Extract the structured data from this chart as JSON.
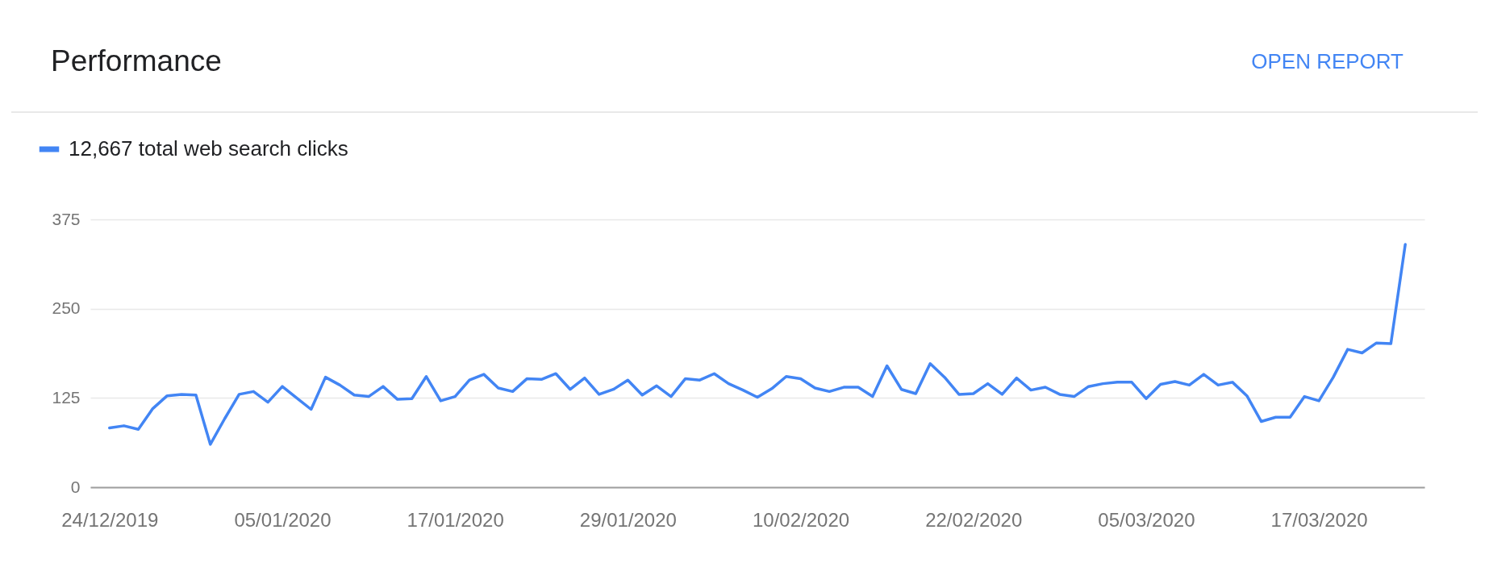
{
  "chart_data": {
    "type": "line",
    "title": "Performance",
    "annotations": [
      "OPEN REPORT"
    ],
    "x": [
      "2019-12-24",
      "2019-12-25",
      "2019-12-26",
      "2019-12-27",
      "2019-12-28",
      "2019-12-29",
      "2019-12-30",
      "2019-12-31",
      "2020-01-01",
      "2020-01-02",
      "2020-01-03",
      "2020-01-04",
      "2020-01-05",
      "2020-01-06",
      "2020-01-07",
      "2020-01-08",
      "2020-01-09",
      "2020-01-10",
      "2020-01-11",
      "2020-01-12",
      "2020-01-13",
      "2020-01-14",
      "2020-01-15",
      "2020-01-16",
      "2020-01-17",
      "2020-01-18",
      "2020-01-19",
      "2020-01-20",
      "2020-01-21",
      "2020-01-22",
      "2020-01-23",
      "2020-01-24",
      "2020-01-25",
      "2020-01-26",
      "2020-01-27",
      "2020-01-28",
      "2020-01-29",
      "2020-01-30",
      "2020-01-31",
      "2020-02-01",
      "2020-02-02",
      "2020-02-03",
      "2020-02-04",
      "2020-02-05",
      "2020-02-06",
      "2020-02-07",
      "2020-02-08",
      "2020-02-09",
      "2020-02-10",
      "2020-02-11",
      "2020-02-12",
      "2020-02-13",
      "2020-02-14",
      "2020-02-15",
      "2020-02-16",
      "2020-02-17",
      "2020-02-18",
      "2020-02-19",
      "2020-02-20",
      "2020-02-21",
      "2020-02-22",
      "2020-02-23",
      "2020-02-24",
      "2020-02-25",
      "2020-02-26",
      "2020-02-27",
      "2020-02-28",
      "2020-02-29",
      "2020-03-01",
      "2020-03-02",
      "2020-03-03",
      "2020-03-04",
      "2020-03-05",
      "2020-03-06",
      "2020-03-07",
      "2020-03-08",
      "2020-03-09",
      "2020-03-10",
      "2020-03-11",
      "2020-03-12",
      "2020-03-13",
      "2020-03-14",
      "2020-03-15",
      "2020-03-16",
      "2020-03-17",
      "2020-03-18",
      "2020-03-19",
      "2020-03-20",
      "2020-03-21",
      "2020-03-22",
      "2020-03-23"
    ],
    "series": [
      {
        "name": "12,667 total web search clicks",
        "color": "#4285f4",
        "values": [
          83,
          86,
          81,
          110,
          128,
          130,
          129,
          60,
          96,
          130,
          134,
          119,
          141,
          125,
          109,
          154,
          143,
          129,
          127,
          141,
          123,
          124,
          155,
          121,
          127,
          150,
          158,
          139,
          134,
          152,
          151,
          159,
          137,
          153,
          130,
          137,
          150,
          129,
          142,
          127,
          152,
          150,
          159,
          145,
          136,
          126,
          138,
          155,
          152,
          139,
          134,
          140,
          140,
          127,
          170,
          137,
          131,
          173,
          154,
          130,
          131,
          145,
          130,
          153,
          136,
          140,
          130,
          127,
          141,
          145,
          147,
          147,
          124,
          144,
          148,
          143,
          158,
          143,
          147,
          128,
          92,
          98,
          98,
          127,
          121,
          154,
          193,
          188,
          202,
          201,
          340
        ]
      }
    ],
    "xlim": [
      "2019-12-22T16:00",
      "2020-03-24T08:00"
    ],
    "xticks": [
      {
        "value": "2019-12-24",
        "label": "24/12/2019"
      },
      {
        "value": "2020-01-05",
        "label": "05/01/2020"
      },
      {
        "value": "2020-01-17",
        "label": "17/01/2020"
      },
      {
        "value": "2020-01-29",
        "label": "29/01/2020"
      },
      {
        "value": "2020-02-10",
        "label": "10/02/2020"
      },
      {
        "value": "2020-02-22",
        "label": "22/02/2020"
      },
      {
        "value": "2020-03-05",
        "label": "05/03/2020"
      },
      {
        "value": "2020-03-17",
        "label": "17/03/2020"
      }
    ],
    "ylim": [
      0,
      375
    ],
    "yticks": [
      0,
      125,
      250,
      375
    ],
    "grid": "y",
    "legend": "top left"
  }
}
